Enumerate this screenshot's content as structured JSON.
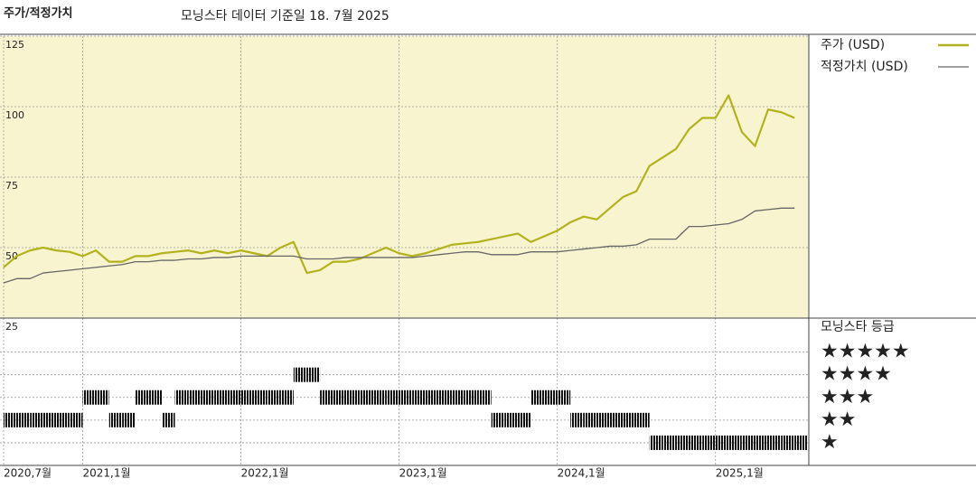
{
  "chart_data": [
    {
      "type": "line",
      "title": "주가/적정가치",
      "subtitle": "모닝스타 데이터 기준일 18. 7월 2025",
      "x": [
        2020.5,
        2020.583,
        2020.667,
        2020.75,
        2020.833,
        2020.917,
        2021,
        2021.083,
        2021.167,
        2021.25,
        2021.333,
        2021.417,
        2021.5,
        2021.583,
        2021.667,
        2021.75,
        2021.833,
        2021.917,
        2022,
        2022.083,
        2022.167,
        2022.25,
        2022.333,
        2022.417,
        2022.5,
        2022.583,
        2022.667,
        2022.75,
        2022.833,
        2022.917,
        2023,
        2023.083,
        2023.167,
        2023.25,
        2023.333,
        2023.417,
        2023.5,
        2023.583,
        2023.667,
        2023.75,
        2023.833,
        2023.917,
        2024,
        2024.083,
        2024.167,
        2024.25,
        2024.333,
        2024.417,
        2024.5,
        2024.583,
        2024.667,
        2024.75,
        2024.833,
        2024.917,
        2025,
        2025.083,
        2025.167,
        2025.25,
        2025.333,
        2025.417,
        2025.5
      ],
      "series": [
        {
          "name": "주가 (USD)",
          "color": "#b2b21e",
          "values": [
            43,
            47,
            49,
            50,
            49,
            48.5,
            47,
            49,
            45,
            45,
            47,
            47,
            48,
            48.5,
            49,
            48,
            49,
            48,
            49,
            48,
            47,
            50,
            52,
            41,
            42,
            45,
            45,
            46,
            48,
            50,
            48,
            47,
            48,
            49.5,
            51,
            51.5,
            52,
            53,
            54,
            55,
            52,
            54,
            56,
            59,
            61,
            60,
            64,
            68,
            70,
            79,
            82,
            85,
            92,
            96,
            96,
            104,
            91,
            86,
            99,
            98,
            96
          ]
        },
        {
          "name": "적정가치 (USD)",
          "color": "#666666",
          "values": [
            37.5,
            39,
            39,
            41,
            41.5,
            42,
            42.5,
            43,
            43.5,
            44,
            45,
            45,
            45.5,
            45.5,
            46,
            46,
            46.5,
            46.5,
            47,
            47,
            47,
            47,
            47,
            46,
            46,
            46,
            46.5,
            46.5,
            46.5,
            46.5,
            46.5,
            46.5,
            47,
            47.5,
            48,
            48.5,
            48.5,
            47.5,
            47.5,
            47.5,
            48.5,
            48.5,
            48.5,
            49,
            49.5,
            50,
            50.5,
            50.5,
            51,
            53,
            53,
            53,
            57.5,
            57.5,
            58,
            58.5,
            60,
            63,
            63.5,
            64,
            64
          ]
        }
      ],
      "xlim": [
        2020.5,
        2025.59
      ],
      "xticks": [
        {
          "value": 2020.5,
          "label": "2020,7월"
        },
        {
          "value": 2021,
          "label": "2021,1월"
        },
        {
          "value": 2022,
          "label": "2022,1월"
        },
        {
          "value": 2023,
          "label": "2023,1월"
        },
        {
          "value": 2024,
          "label": "2024,1월"
        },
        {
          "value": 2025,
          "label": "2025,1월"
        }
      ],
      "ylim": [
        25,
        125
      ],
      "yticks": [
        25,
        50,
        75,
        100,
        125
      ],
      "grid": true,
      "legend": "right",
      "background": "#f8f4cf"
    },
    {
      "type": "rating",
      "title": "모닝스타 등급",
      "x": [
        2020.5,
        2020.583,
        2020.667,
        2020.75,
        2020.833,
        2020.917,
        2021,
        2021.083,
        2021.167,
        2021.25,
        2021.333,
        2021.417,
        2021.5,
        2021.583,
        2021.667,
        2021.75,
        2021.833,
        2021.917,
        2022,
        2022.083,
        2022.167,
        2022.25,
        2022.333,
        2022.417,
        2022.5,
        2022.583,
        2022.667,
        2022.75,
        2022.833,
        2022.917,
        2023,
        2023.083,
        2023.167,
        2023.25,
        2023.333,
        2023.417,
        2023.5,
        2023.583,
        2023.667,
        2023.75,
        2023.833,
        2023.917,
        2024,
        2024.083,
        2024.167,
        2024.25,
        2024.333,
        2024.417,
        2024.5,
        2024.583,
        2024.667,
        2024.75,
        2024.833,
        2024.917,
        2025,
        2025.083,
        2025.167,
        2025.25,
        2025.333,
        2025.417,
        2025.5
      ],
      "values": [
        2,
        2,
        2,
        2,
        2,
        2,
        3,
        3,
        2,
        2,
        3,
        3,
        2,
        3,
        3,
        3,
        3,
        3,
        3,
        3,
        3,
        3,
        4,
        4,
        3,
        3,
        3,
        3,
        3,
        3,
        3,
        3,
        3,
        3,
        3,
        3,
        3,
        2,
        2,
        2,
        3,
        3,
        3,
        2,
        2,
        2,
        2,
        2,
        2,
        1,
        1,
        1,
        1,
        1,
        1,
        1,
        1,
        1,
        1,
        1,
        1
      ],
      "ylim": [
        0,
        6.5
      ],
      "yticks": [
        {
          "value": 5,
          "label": "★★★★★"
        },
        {
          "value": 4,
          "label": "★★★★"
        },
        {
          "value": 3,
          "label": "★★★"
        },
        {
          "value": 2,
          "label": "★★"
        },
        {
          "value": 1,
          "label": "★"
        }
      ],
      "color": "#111111"
    }
  ]
}
